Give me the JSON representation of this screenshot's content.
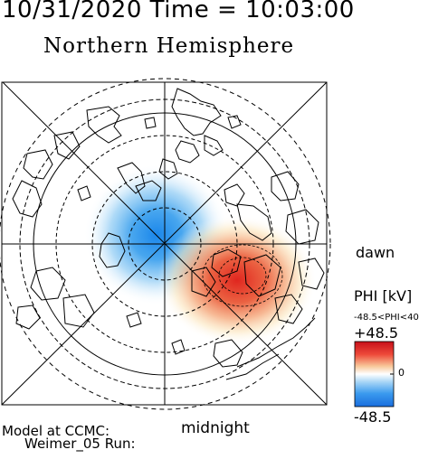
{
  "header": {
    "time_line": "10/31/2020 Time = 10:03:00",
    "title": "Northern Hemisphere"
  },
  "map": {
    "labels": {
      "dawn": "dawn",
      "midnight": "midnight"
    },
    "colors": {
      "positive": "#e0302a",
      "negative": "#1e88e8",
      "coastline": "#000000"
    }
  },
  "legend": {
    "title": "PHI [kV]",
    "range_text": "-48.5<PHI<40",
    "max_label": "+48.5",
    "zero_label": "0",
    "min_label": "-48.5"
  },
  "footer": {
    "model_line": "Model at CCMC:",
    "run_line": "Weimer_05 Run:"
  }
}
